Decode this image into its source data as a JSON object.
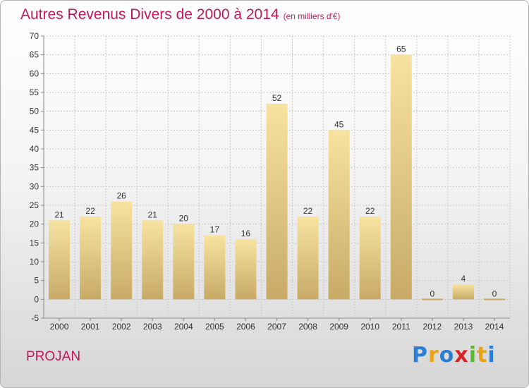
{
  "header": {
    "title": "Autres Revenus Divers de 2000 à 2014",
    "subtitle": "(en milliers d'€)"
  },
  "footer": {
    "location": "PROJAN",
    "logo_text": "Proxiti",
    "logo_colors": [
      "#2a7fd4",
      "#e8a317",
      "#2a7fd4",
      "#d92323",
      "#5cb82e",
      "#e8a317",
      "#2a7fd4"
    ]
  },
  "colors": {
    "title": "#c2185b",
    "bar_light": "#f7e3a1",
    "bar_dark": "#c8aa66",
    "grid": "#c8c8c8",
    "axis": "#888888"
  },
  "chart_data": {
    "type": "bar",
    "title": "Autres Revenus Divers de 2000 à 2014",
    "subtitle": "(en milliers d'€)",
    "xlabel": "",
    "ylabel": "",
    "categories": [
      "2000",
      "2001",
      "2002",
      "2003",
      "2004",
      "2005",
      "2006",
      "2007",
      "2008",
      "2009",
      "2010",
      "2011",
      "2012",
      "2013",
      "2014"
    ],
    "values": [
      21,
      22,
      26,
      21,
      20,
      17,
      16,
      52,
      22,
      45,
      22,
      65,
      0,
      4,
      0
    ],
    "data_labels": [
      "21",
      "22",
      "26",
      "21",
      "20",
      "17",
      "16",
      "52",
      "22",
      "45",
      "22",
      "65",
      "0",
      "4",
      "0"
    ],
    "ylim": [
      -5,
      70
    ],
    "yticks": [
      -5,
      0,
      5,
      10,
      15,
      20,
      25,
      30,
      35,
      40,
      45,
      50,
      55,
      60,
      65,
      70
    ],
    "grid": true,
    "legend": "none"
  }
}
